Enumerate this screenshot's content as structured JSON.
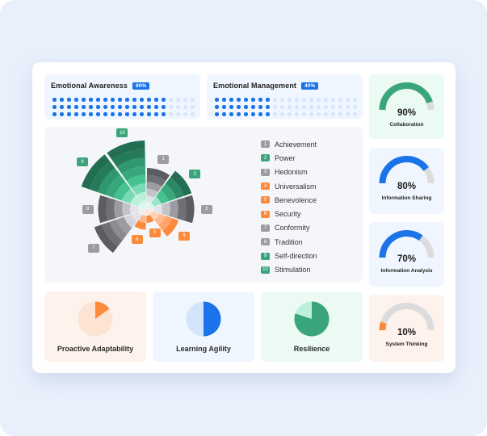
{
  "colors": {
    "blue": "#1a73e8",
    "blue_light": "#d4e5fb",
    "green": "#3aa57b",
    "green_light": "#bdf0dc",
    "orange": "#fb8b3a",
    "orange_light": "#fde3d2",
    "gray_track": "#dcdcdc"
  },
  "top_cards": [
    {
      "title": "Emotional Awareness",
      "badge": "80%",
      "filled_per_row": 16,
      "total_per_row": 20,
      "rows": 3
    },
    {
      "title": "Emotional Management",
      "badge": "40%",
      "filled_per_row": 8,
      "total_per_row": 20,
      "rows": 3
    }
  ],
  "gauges": [
    {
      "value": "90%",
      "label": "Collaboration",
      "pct": 90,
      "color": "#3aa57b",
      "bg": "green"
    },
    {
      "value": "80%",
      "label": "Information Sharing",
      "pct": 80,
      "color": "#1a73e8",
      "bg": "blue"
    },
    {
      "value": "70%",
      "label": "Information Analysis",
      "pct": 70,
      "color": "#1a73e8",
      "bg": "blue"
    },
    {
      "value": "10%",
      "label": "System Thinking",
      "pct": 10,
      "color": "#fb8b3a",
      "bg": "orange"
    }
  ],
  "legend": [
    {
      "num": "1",
      "label": "Achievement",
      "color": "#9b9da3"
    },
    {
      "num": "2",
      "label": "Power",
      "color": "#3aa57b"
    },
    {
      "num": "3",
      "label": "Hedonism",
      "color": "#9b9da3"
    },
    {
      "num": "4",
      "label": "Universalism",
      "color": "#fb8b3a"
    },
    {
      "num": "5",
      "label": "Benevolence",
      "color": "#fb8b3a"
    },
    {
      "num": "6",
      "label": "Security",
      "color": "#fb8b3a"
    },
    {
      "num": "7",
      "label": "Conformity",
      "color": "#9b9da3"
    },
    {
      "num": "8",
      "label": "Tradition",
      "color": "#9b9da3"
    },
    {
      "num": "9",
      "label": "Self-direction",
      "color": "#3aa57b"
    },
    {
      "num": "10",
      "label": "Stimulation",
      "color": "#3aa57b"
    }
  ],
  "bottom_cards": [
    {
      "label": "Proactive Adaptability",
      "pct": 15,
      "bg": "orange"
    },
    {
      "label": "Learning Agility",
      "pct": 50,
      "bg": "blue"
    },
    {
      "label": "Resilience",
      "pct": 80,
      "bg": "green"
    }
  ],
  "chart_data": [
    {
      "type": "polar-area",
      "title": "",
      "categories": [
        "Achievement",
        "Power",
        "Hedonism",
        "Universalism",
        "Benevolence",
        "Security",
        "Conformity",
        "Tradition",
        "Self-direction",
        "Stimulation"
      ],
      "values": [
        6,
        7,
        7,
        5,
        2,
        3,
        8,
        7,
        10,
        10
      ],
      "max": 10,
      "series_colors": [
        "gray",
        "green",
        "gray",
        "orange",
        "orange",
        "orange",
        "gray",
        "gray",
        "green",
        "green"
      ]
    },
    {
      "type": "gauge",
      "title": "Collaboration",
      "values": [
        90
      ]
    },
    {
      "type": "gauge",
      "title": "Information Sharing",
      "values": [
        80
      ]
    },
    {
      "type": "gauge",
      "title": "Information Analysis",
      "values": [
        70
      ]
    },
    {
      "type": "gauge",
      "title": "System Thinking",
      "values": [
        10
      ]
    },
    {
      "type": "pie",
      "title": "Proactive Adaptability",
      "values": [
        15,
        85
      ]
    },
    {
      "type": "pie",
      "title": "Learning Agility",
      "values": [
        50,
        50
      ]
    },
    {
      "type": "pie",
      "title": "Resilience",
      "values": [
        80,
        20
      ]
    }
  ]
}
